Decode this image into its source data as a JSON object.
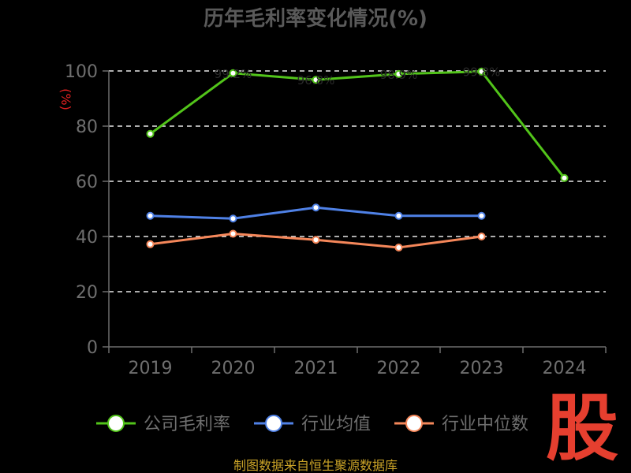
{
  "chart_data": {
    "type": "line",
    "title": "历年毛利率变化情况(%)",
    "ylabel": "(%)",
    "categories": [
      "2019",
      "2020",
      "2021",
      "2022",
      "2023",
      "2024"
    ],
    "ylim": [
      0,
      100
    ],
    "yticks": [
      0,
      20,
      40,
      60,
      80,
      100
    ],
    "grid": "horizontal dashed",
    "legend_position": "bottom",
    "series": [
      {
        "name": "公司毛利率",
        "color": "#52c41a",
        "values": [
          77.2,
          99.2,
          96.8,
          98.9,
          99.8,
          61.2
        ],
        "labels": [
          "",
          "99.2%",
          "96.8%",
          "98.9%",
          "99.8%",
          ""
        ]
      },
      {
        "name": "行业均值",
        "color": "#4f81e6",
        "values": [
          47.5,
          46.5,
          50.5,
          47.5,
          47.5,
          null
        ]
      },
      {
        "name": "行业中位数",
        "color": "#f5875a",
        "values": [
          37.2,
          41.0,
          38.8,
          36.0,
          40.0,
          null
        ]
      }
    ]
  },
  "footer": "制图数据来自恒生聚源数据库",
  "logo_text": "股"
}
